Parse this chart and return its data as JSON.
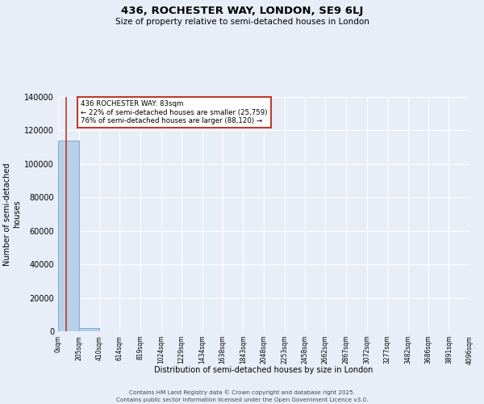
{
  "title_line1": "436, ROCHESTER WAY, LONDON, SE9 6LJ",
  "title_line2": "Size of property relative to semi-detached houses in London",
  "xlabel": "Distribution of semi-detached houses by size in London",
  "ylabel": "Number of semi-detached\nhouses",
  "property_size": 83,
  "property_label": "436 ROCHESTER WAY: 83sqm",
  "pct_smaller": 22,
  "count_smaller": 25759,
  "pct_larger": 76,
  "count_larger": 88120,
  "bar_color": "#b8cfe8",
  "bar_edge_color": "#7aadd4",
  "vline_color": "#c0392b",
  "annotation_box_color": "#c0392b",
  "background_color": "#e8eef8",
  "grid_color": "#ffffff",
  "bin_edges": [
    0,
    205,
    410,
    614,
    819,
    1024,
    1229,
    1434,
    1638,
    1843,
    2048,
    2253,
    2458,
    2662,
    2867,
    3072,
    3277,
    3482,
    3686,
    3891,
    4096
  ],
  "bin_labels": [
    "0sqm",
    "205sqm",
    "410sqm",
    "614sqm",
    "819sqm",
    "1024sqm",
    "1229sqm",
    "1434sqm",
    "1638sqm",
    "1843sqm",
    "2048sqm",
    "2253sqm",
    "2458sqm",
    "2662sqm",
    "2867sqm",
    "3072sqm",
    "3277sqm",
    "3482sqm",
    "3686sqm",
    "3891sqm",
    "4096sqm"
  ],
  "bar_heights": [
    113879,
    1800,
    0,
    0,
    0,
    0,
    0,
    0,
    0,
    0,
    0,
    0,
    0,
    0,
    0,
    0,
    0,
    0,
    0,
    0
  ],
  "ylim": [
    0,
    140000
  ],
  "yticks": [
    0,
    20000,
    40000,
    60000,
    80000,
    100000,
    120000,
    140000
  ],
  "footer_line1": "Contains HM Land Registry data © Crown copyright and database right 2025.",
  "footer_line2": "Contains public sector information licensed under the Open Government Licence v3.0."
}
